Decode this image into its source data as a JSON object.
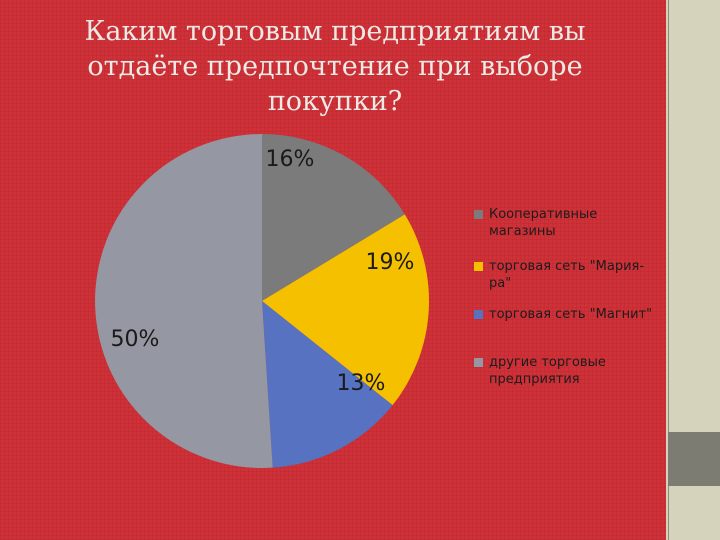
{
  "title_lines": [
    "Каким торговым предприятиям вы",
    "отдаёте предпочтение при выборе",
    "покупки?"
  ],
  "chart_data": {
    "type": "pie",
    "title": "Каким торговым предприятиям вы отдаёте предпочтение при выборе покупки?",
    "categories": [
      "Кооперативные магазины",
      "торговая сеть \"Мария-ра\"",
      "торговая сеть \"Магнит\"",
      "другие торговые предприятия"
    ],
    "values": [
      16,
      19,
      13,
      50
    ],
    "labels": [
      "16%",
      "19%",
      "13%",
      "50%"
    ],
    "colors": [
      "#7b7b7b",
      "#f5c000",
      "#5672c0",
      "#9597a3"
    ],
    "legend_position": "right"
  },
  "legend": {
    "items": [
      {
        "line1": "Кооперативные",
        "line2": "магазины"
      },
      {
        "line1": "торговая сеть \"Мария-",
        "line2": "ра\""
      },
      {
        "line1": "торговая сеть \"Магнит\"",
        "line2": ""
      },
      {
        "line1": "другие торговые",
        "line2": "предприятия"
      }
    ]
  }
}
